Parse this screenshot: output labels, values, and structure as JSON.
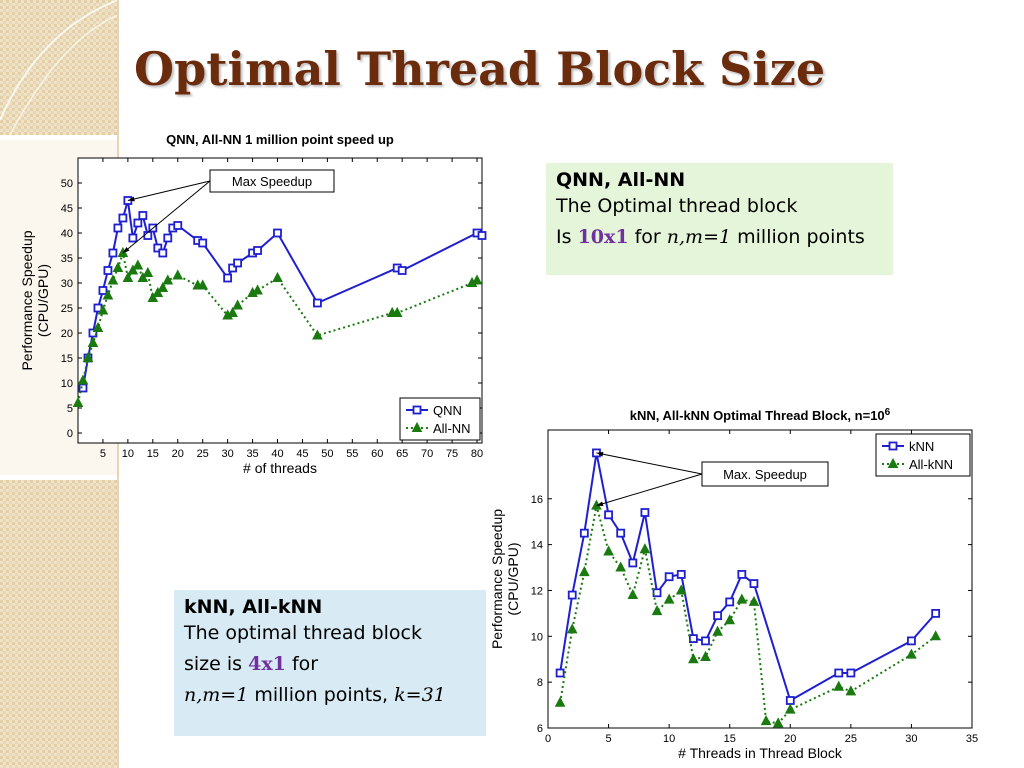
{
  "slide": {
    "title": "Optimal Thread Block Size",
    "colors": {
      "title": "#6b2b0d",
      "accent": "#7030a0",
      "box1_bg": "#e5f5d9",
      "box2_bg": "#d8eaf4"
    }
  },
  "box1": {
    "heading": "QNN, All-NN",
    "line1": "The Optimal thread block",
    "prefix": "Is",
    "value": "10x1",
    "for": "for",
    "vars": "n,m=1",
    "suffix": "million points"
  },
  "box2": {
    "heading": "kNN, All-kNN",
    "line1": "The optimal thread block",
    "prefix": "size is",
    "value": "4x1",
    "for": "for",
    "vars": "n,m=1",
    "suffix": "million points,",
    "kvar": "k=31"
  },
  "chart_data": [
    {
      "type": "line",
      "title": "QNN, All-NN 1 million point speed up",
      "xlabel": "# of threads",
      "ylabel": [
        "Performance Speedup",
        "(CPU/GPU)"
      ],
      "xlim": [
        0,
        81
      ],
      "ylim": [
        -2,
        55
      ],
      "xticks": [
        5,
        10,
        15,
        20,
        25,
        30,
        35,
        40,
        45,
        50,
        55,
        60,
        65,
        70,
        75,
        80
      ],
      "yticks": [
        0,
        5,
        10,
        15,
        20,
        25,
        30,
        35,
        40,
        45,
        50
      ],
      "legend_position": "bottom-right",
      "annotation": {
        "text": "Max Speedup",
        "points_to": [
          [
            10,
            46.5
          ],
          [
            9,
            36
          ]
        ]
      },
      "series": [
        {
          "name": "QNN",
          "color": "#1f1fd0",
          "marker": "square",
          "line": "solid",
          "points": [
            [
              1,
              9
            ],
            [
              2,
              15
            ],
            [
              3,
              20
            ],
            [
              4,
              25
            ],
            [
              5,
              28.5
            ],
            [
              6,
              32.5
            ],
            [
              7,
              36
            ],
            [
              8,
              41
            ],
            [
              9,
              43
            ],
            [
              10,
              46.5
            ],
            [
              11,
              39
            ],
            [
              12,
              42
            ],
            [
              13,
              43.5
            ],
            [
              14,
              39.5
            ],
            [
              15,
              41
            ],
            [
              16,
              37
            ],
            [
              17,
              36
            ],
            [
              18,
              39
            ],
            [
              19,
              41
            ],
            [
              20,
              41.5
            ],
            [
              24,
              38.5
            ],
            [
              25,
              38
            ],
            [
              30,
              31
            ],
            [
              31,
              33
            ],
            [
              32,
              34
            ],
            [
              35,
              36
            ],
            [
              36,
              36.5
            ],
            [
              40,
              40
            ],
            [
              48,
              26
            ],
            [
              64,
              33
            ],
            [
              65,
              32.5
            ],
            [
              80,
              40
            ],
            [
              81,
              39.5
            ]
          ]
        },
        {
          "name": "All-NN",
          "color": "#1a7a10",
          "marker": "triangle",
          "line": "dotted",
          "points": [
            [
              0,
              6
            ],
            [
              1,
              10.5
            ],
            [
              2,
              15
            ],
            [
              3,
              18
            ],
            [
              4,
              21
            ],
            [
              5,
              24.5
            ],
            [
              6,
              27.5
            ],
            [
              7,
              30.5
            ],
            [
              8,
              33
            ],
            [
              9,
              36
            ],
            [
              10,
              31
            ],
            [
              11,
              32.5
            ],
            [
              12,
              33.5
            ],
            [
              13,
              31
            ],
            [
              14,
              32
            ],
            [
              15,
              27
            ],
            [
              16,
              28
            ],
            [
              17,
              29
            ],
            [
              18,
              30.5
            ],
            [
              20,
              31.5
            ],
            [
              24,
              29.5
            ],
            [
              25,
              29.5
            ],
            [
              30,
              23.5
            ],
            [
              31,
              24
            ],
            [
              32,
              25.5
            ],
            [
              35,
              28
            ],
            [
              36,
              28.5
            ],
            [
              40,
              31
            ],
            [
              48,
              19.5
            ],
            [
              63,
              24
            ],
            [
              64,
              24
            ],
            [
              79,
              30
            ],
            [
              80,
              30.5
            ]
          ]
        }
      ]
    },
    {
      "type": "line",
      "title": "kNN, All-kNN Optimal Thread Block, n=10",
      "title_sup": "6",
      "xlabel": "# Threads in Thread Block",
      "ylabel": [
        "Performance Speedup",
        "(CPU/GPU)"
      ],
      "xlim": [
        0,
        35
      ],
      "ylim": [
        6,
        19
      ],
      "xticks": [
        0,
        5,
        10,
        15,
        20,
        25,
        30,
        35
      ],
      "yticks": [
        6,
        8,
        10,
        12,
        14,
        16
      ],
      "legend_position": "top-right",
      "annotation": {
        "text": "Max. Speedup",
        "points_to": [
          [
            4,
            18
          ],
          [
            4,
            15.7
          ]
        ]
      },
      "series": [
        {
          "name": "kNN",
          "color": "#1f1fd0",
          "marker": "square",
          "line": "solid",
          "points": [
            [
              1,
              8.4
            ],
            [
              2,
              11.8
            ],
            [
              3,
              14.5
            ],
            [
              4,
              18
            ],
            [
              5,
              15.3
            ],
            [
              6,
              14.5
            ],
            [
              7,
              13.2
            ],
            [
              8,
              15.4
            ],
            [
              9,
              11.9
            ],
            [
              10,
              12.6
            ],
            [
              11,
              12.7
            ],
            [
              12,
              9.9
            ],
            [
              13,
              9.8
            ],
            [
              14,
              10.9
            ],
            [
              15,
              11.5
            ],
            [
              16,
              12.7
            ],
            [
              17,
              12.3
            ],
            [
              20,
              7.2
            ],
            [
              24,
              8.4
            ],
            [
              25,
              8.4
            ],
            [
              30,
              9.8
            ],
            [
              32,
              11
            ]
          ]
        },
        {
          "name": "All-kNN",
          "color": "#1a7a10",
          "marker": "triangle",
          "line": "dotted",
          "points": [
            [
              1,
              7.1
            ],
            [
              2,
              10.3
            ],
            [
              3,
              12.8
            ],
            [
              4,
              15.7
            ],
            [
              5,
              13.7
            ],
            [
              6,
              13
            ],
            [
              7,
              11.8
            ],
            [
              8,
              13.8
            ],
            [
              9,
              11.1
            ],
            [
              10,
              11.6
            ],
            [
              11,
              12
            ],
            [
              12,
              9
            ],
            [
              13,
              9.1
            ],
            [
              14,
              10.2
            ],
            [
              15,
              10.7
            ],
            [
              16,
              11.6
            ],
            [
              17,
              11.5
            ],
            [
              18,
              6.3
            ],
            [
              19,
              6.2
            ],
            [
              20,
              6.8
            ],
            [
              24,
              7.8
            ],
            [
              25,
              7.6
            ],
            [
              30,
              9.2
            ],
            [
              32,
              10
            ]
          ]
        }
      ]
    }
  ]
}
